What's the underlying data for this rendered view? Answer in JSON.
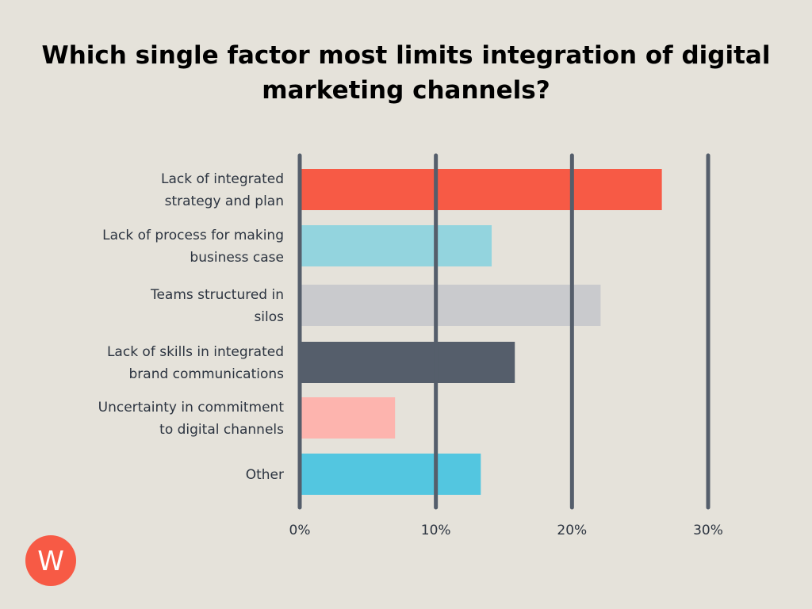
{
  "chart_data": {
    "type": "bar",
    "orientation": "horizontal",
    "title": "Which single factor most limits integration of digital marketing channels?",
    "categories": [
      [
        "Lack of integrated",
        "strategy and plan"
      ],
      [
        "Lack of process for making",
        "business case"
      ],
      [
        "Teams structured in",
        "silos"
      ],
      [
        "Lack of skills in integrated",
        "brand communications"
      ],
      [
        "Uncertainty in commitment",
        "to digital channels"
      ],
      [
        "Other"
      ]
    ],
    "values": [
      26.6,
      14.1,
      22.1,
      15.8,
      7.0,
      13.3
    ],
    "colors": [
      "#F75A45",
      "#93D4DE",
      "#C9CACD",
      "#555E6B",
      "#FDB4AE",
      "#53C6E0"
    ],
    "xlim": [
      0,
      30
    ],
    "xticks": [
      "0%",
      "10%",
      "20%",
      "30%"
    ],
    "grid": true,
    "legend": "none"
  },
  "logo": {
    "letter": "W",
    "color": "#F75A45"
  }
}
